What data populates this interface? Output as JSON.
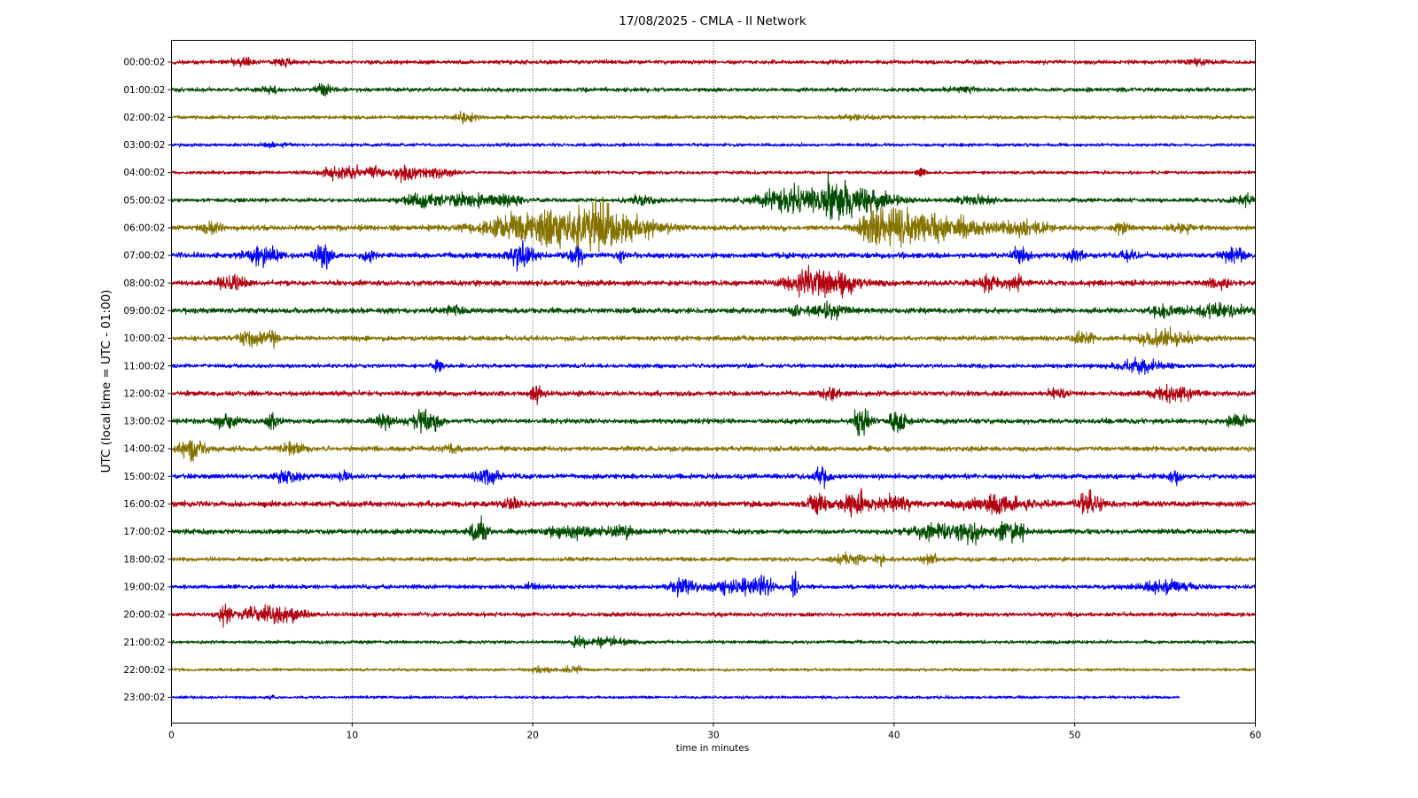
{
  "chart_data": {
    "type": "line",
    "title": "17/08/2025 - CMLA - II Network",
    "xlabel": "time in minutes",
    "ylabel": "UTC (local time = UTC - 01:00)",
    "xlim": [
      0,
      60
    ],
    "x_ticks": [
      0,
      10,
      20,
      30,
      40,
      50,
      60
    ],
    "grid": "vertical dotted lines at each 10 minutes",
    "legend": "none",
    "colors": [
      "#b2000f",
      "#004c00",
      "#857300",
      "#0000ff"
    ],
    "traces": [
      {
        "label": "00:00:02",
        "color": "#b2000f",
        "amp": 0.1,
        "end_min": 60,
        "events": [
          {
            "t": 4,
            "a": 0.15,
            "w": 0.5
          },
          {
            "t": 6.2,
            "a": 0.18,
            "w": 0.4
          },
          {
            "t": 56.8,
            "a": 0.12,
            "w": 0.4
          }
        ]
      },
      {
        "label": "01:00:02",
        "color": "#004c00",
        "amp": 0.1,
        "end_min": 60,
        "events": [
          {
            "t": 8.4,
            "a": 0.25,
            "w": 0.3
          },
          {
            "t": 5.5,
            "a": 0.12,
            "w": 0.4
          },
          {
            "t": 44,
            "a": 0.1,
            "w": 0.6
          }
        ]
      },
      {
        "label": "02:00:02",
        "color": "#857300",
        "amp": 0.09,
        "end_min": 60,
        "events": [
          {
            "t": 16.3,
            "a": 0.2,
            "w": 0.4
          },
          {
            "t": 38,
            "a": 0.08,
            "w": 0.6
          }
        ]
      },
      {
        "label": "03:00:02",
        "color": "#0000ff",
        "amp": 0.08,
        "end_min": 60,
        "events": [
          {
            "t": 5.5,
            "a": 0.09,
            "w": 0.5
          }
        ]
      },
      {
        "label": "04:00:02",
        "color": "#b2000f",
        "amp": 0.08,
        "end_min": 60,
        "events": [
          {
            "t": 9.5,
            "a": 0.32,
            "w": 0.9
          },
          {
            "t": 13,
            "a": 0.38,
            "w": 0.5
          },
          {
            "t": 14.8,
            "a": 0.25,
            "w": 0.6
          },
          {
            "t": 11.3,
            "a": 0.2,
            "w": 0.25
          },
          {
            "t": 41.5,
            "a": 0.3,
            "w": 0.15
          }
        ]
      },
      {
        "label": "05:00:02",
        "color": "#004c00",
        "amp": 0.1,
        "end_min": 60,
        "events": [
          {
            "t": 14,
            "a": 0.28,
            "w": 0.9
          },
          {
            "t": 16.5,
            "a": 0.3,
            "w": 0.8
          },
          {
            "t": 18.5,
            "a": 0.28,
            "w": 0.6
          },
          {
            "t": 34.5,
            "a": 0.55,
            "w": 1.4
          },
          {
            "t": 36.8,
            "a": 0.7,
            "w": 0.8
          },
          {
            "t": 38.5,
            "a": 0.45,
            "w": 1.2
          },
          {
            "t": 26,
            "a": 0.18,
            "w": 0.6
          },
          {
            "t": 44.5,
            "a": 0.18,
            "w": 0.7
          },
          {
            "t": 59.5,
            "a": 0.2,
            "w": 0.5
          }
        ]
      },
      {
        "label": "06:00:02",
        "color": "#857300",
        "amp": 0.13,
        "end_min": 60,
        "events": [
          {
            "t": 2.3,
            "a": 0.25,
            "w": 0.4
          },
          {
            "t": 19.5,
            "a": 0.45,
            "w": 1.8
          },
          {
            "t": 22,
            "a": 0.65,
            "w": 1.6
          },
          {
            "t": 23.8,
            "a": 0.85,
            "w": 0.6
          },
          {
            "t": 25.8,
            "a": 0.35,
            "w": 1.2
          },
          {
            "t": 38.9,
            "a": 0.7,
            "w": 0.6
          },
          {
            "t": 40.5,
            "a": 0.75,
            "w": 1.0
          },
          {
            "t": 43,
            "a": 0.45,
            "w": 1.5
          },
          {
            "t": 47,
            "a": 0.3,
            "w": 1.0
          },
          {
            "t": 52.5,
            "a": 0.22,
            "w": 0.3
          },
          {
            "t": 56,
            "a": 0.2,
            "w": 0.4
          }
        ]
      },
      {
        "label": "07:00:02",
        "color": "#0000ff",
        "amp": 0.13,
        "end_min": 60,
        "events": [
          {
            "t": 5,
            "a": 0.38,
            "w": 0.7
          },
          {
            "t": 8.4,
            "a": 0.5,
            "w": 0.35
          },
          {
            "t": 10.9,
            "a": 0.4,
            "w": 0.2
          },
          {
            "t": 19.4,
            "a": 0.55,
            "w": 0.5
          },
          {
            "t": 22.4,
            "a": 0.4,
            "w": 0.3
          },
          {
            "t": 25,
            "a": 0.22,
            "w": 0.2
          },
          {
            "t": 47,
            "a": 0.3,
            "w": 0.4
          },
          {
            "t": 50,
            "a": 0.3,
            "w": 0.3
          },
          {
            "t": 53,
            "a": 0.25,
            "w": 0.3
          },
          {
            "t": 58.8,
            "a": 0.45,
            "w": 0.4
          }
        ]
      },
      {
        "label": "08:00:02",
        "color": "#b2000f",
        "amp": 0.13,
        "end_min": 60,
        "events": [
          {
            "t": 3,
            "a": 0.35,
            "w": 0.3
          },
          {
            "t": 3.8,
            "a": 0.25,
            "w": 0.3
          },
          {
            "t": 36.5,
            "a": 0.55,
            "w": 1.3
          },
          {
            "t": 35,
            "a": 0.35,
            "w": 0.6
          },
          {
            "t": 45.3,
            "a": 0.45,
            "w": 0.4
          },
          {
            "t": 46.8,
            "a": 0.3,
            "w": 0.3
          },
          {
            "t": 58,
            "a": 0.25,
            "w": 0.4
          }
        ]
      },
      {
        "label": "09:00:02",
        "color": "#004c00",
        "amp": 0.13,
        "end_min": 60,
        "events": [
          {
            "t": 34.5,
            "a": 0.45,
            "w": 0.15
          },
          {
            "t": 36.5,
            "a": 0.3,
            "w": 0.8
          },
          {
            "t": 15.8,
            "a": 0.2,
            "w": 0.5
          },
          {
            "t": 55,
            "a": 0.3,
            "w": 0.6
          },
          {
            "t": 58,
            "a": 0.3,
            "w": 0.9
          }
        ]
      },
      {
        "label": "10:00:02",
        "color": "#857300",
        "amp": 0.12,
        "end_min": 60,
        "events": [
          {
            "t": 4.5,
            "a": 0.4,
            "w": 0.5
          },
          {
            "t": 5.6,
            "a": 0.45,
            "w": 0.2
          },
          {
            "t": 50.5,
            "a": 0.3,
            "w": 0.4
          },
          {
            "t": 55,
            "a": 0.35,
            "w": 1.0
          }
        ]
      },
      {
        "label": "11:00:02",
        "color": "#0000ff",
        "amp": 0.1,
        "end_min": 60,
        "events": [
          {
            "t": 14.8,
            "a": 0.3,
            "w": 0.2
          },
          {
            "t": 53.5,
            "a": 0.25,
            "w": 1.0
          }
        ]
      },
      {
        "label": "12:00:02",
        "color": "#b2000f",
        "amp": 0.12,
        "end_min": 60,
        "events": [
          {
            "t": 20.2,
            "a": 0.3,
            "w": 0.3
          },
          {
            "t": 36.5,
            "a": 0.3,
            "w": 0.3
          },
          {
            "t": 55.5,
            "a": 0.3,
            "w": 0.8
          },
          {
            "t": 49,
            "a": 0.2,
            "w": 0.4
          }
        ]
      },
      {
        "label": "13:00:02",
        "color": "#004c00",
        "amp": 0.12,
        "end_min": 60,
        "events": [
          {
            "t": 3,
            "a": 0.3,
            "w": 0.5
          },
          {
            "t": 5.6,
            "a": 0.4,
            "w": 0.3
          },
          {
            "t": 11.8,
            "a": 0.25,
            "w": 0.4
          },
          {
            "t": 13.8,
            "a": 0.45,
            "w": 0.4
          },
          {
            "t": 14.6,
            "a": 0.4,
            "w": 0.3
          },
          {
            "t": 38.2,
            "a": 0.65,
            "w": 0.3
          },
          {
            "t": 40.2,
            "a": 0.7,
            "w": 0.3
          },
          {
            "t": 59,
            "a": 0.3,
            "w": 0.4
          }
        ]
      },
      {
        "label": "14:00:02",
        "color": "#857300",
        "amp": 0.12,
        "end_min": 60,
        "events": [
          {
            "t": 1.1,
            "a": 0.55,
            "w": 0.5
          },
          {
            "t": 6.7,
            "a": 0.35,
            "w": 0.4
          },
          {
            "t": 15.6,
            "a": 0.2,
            "w": 0.3
          }
        ]
      },
      {
        "label": "15:00:02",
        "color": "#0000ff",
        "amp": 0.12,
        "end_min": 60,
        "events": [
          {
            "t": 6.5,
            "a": 0.25,
            "w": 0.5
          },
          {
            "t": 9.6,
            "a": 0.3,
            "w": 0.2
          },
          {
            "t": 17.5,
            "a": 0.3,
            "w": 0.5
          },
          {
            "t": 36,
            "a": 0.45,
            "w": 0.3
          },
          {
            "t": 55.6,
            "a": 0.35,
            "w": 0.2
          }
        ]
      },
      {
        "label": "16:00:02",
        "color": "#b2000f",
        "amp": 0.14,
        "end_min": 60,
        "events": [
          {
            "t": 18.8,
            "a": 0.3,
            "w": 0.3
          },
          {
            "t": 35.8,
            "a": 0.55,
            "w": 0.4
          },
          {
            "t": 37.8,
            "a": 0.6,
            "w": 0.5
          },
          {
            "t": 40,
            "a": 0.35,
            "w": 0.6
          },
          {
            "t": 45.5,
            "a": 0.35,
            "w": 1.3
          },
          {
            "t": 50.8,
            "a": 0.45,
            "w": 0.5
          }
        ]
      },
      {
        "label": "17:00:02",
        "color": "#004c00",
        "amp": 0.12,
        "end_min": 60,
        "events": [
          {
            "t": 17,
            "a": 0.6,
            "w": 0.3
          },
          {
            "t": 22.3,
            "a": 0.3,
            "w": 1.0
          },
          {
            "t": 25,
            "a": 0.25,
            "w": 0.6
          },
          {
            "t": 42.5,
            "a": 0.35,
            "w": 1.1
          },
          {
            "t": 44.2,
            "a": 0.5,
            "w": 0.4
          },
          {
            "t": 46,
            "a": 0.45,
            "w": 0.3
          },
          {
            "t": 46.8,
            "a": 0.45,
            "w": 0.3
          }
        ]
      },
      {
        "label": "18:00:02",
        "color": "#857300",
        "amp": 0.1,
        "end_min": 60,
        "events": [
          {
            "t": 37.5,
            "a": 0.25,
            "w": 0.6
          },
          {
            "t": 39.2,
            "a": 0.3,
            "w": 0.2
          },
          {
            "t": 42,
            "a": 0.25,
            "w": 0.3
          }
        ]
      },
      {
        "label": "19:00:02",
        "color": "#0000ff",
        "amp": 0.1,
        "end_min": 60,
        "events": [
          {
            "t": 28.4,
            "a": 0.45,
            "w": 0.5
          },
          {
            "t": 31.5,
            "a": 0.35,
            "w": 1.0
          },
          {
            "t": 32.8,
            "a": 0.45,
            "w": 0.3
          },
          {
            "t": 34.5,
            "a": 0.55,
            "w": 0.15
          },
          {
            "t": 55,
            "a": 0.25,
            "w": 1.0
          },
          {
            "t": 20,
            "a": 0.15,
            "w": 0.3
          }
        ]
      },
      {
        "label": "20:00:02",
        "color": "#b2000f",
        "amp": 0.1,
        "end_min": 60,
        "events": [
          {
            "t": 3,
            "a": 0.45,
            "w": 0.3
          },
          {
            "t": 4.8,
            "a": 0.35,
            "w": 0.6
          },
          {
            "t": 6.5,
            "a": 0.35,
            "w": 0.7
          }
        ]
      },
      {
        "label": "21:00:02",
        "color": "#004c00",
        "amp": 0.08,
        "end_min": 60,
        "events": [
          {
            "t": 22.6,
            "a": 0.25,
            "w": 0.25
          },
          {
            "t": 24.3,
            "a": 0.2,
            "w": 0.7
          }
        ]
      },
      {
        "label": "22:00:02",
        "color": "#857300",
        "amp": 0.07,
        "end_min": 60,
        "events": [
          {
            "t": 20.5,
            "a": 0.15,
            "w": 0.4
          },
          {
            "t": 22.3,
            "a": 0.18,
            "w": 0.3
          }
        ]
      },
      {
        "label": "23:00:02",
        "color": "#0000ff",
        "amp": 0.07,
        "end_min": 55.8,
        "events": [
          {
            "t": 5.5,
            "a": 0.12,
            "w": 0.1
          }
        ]
      }
    ]
  }
}
